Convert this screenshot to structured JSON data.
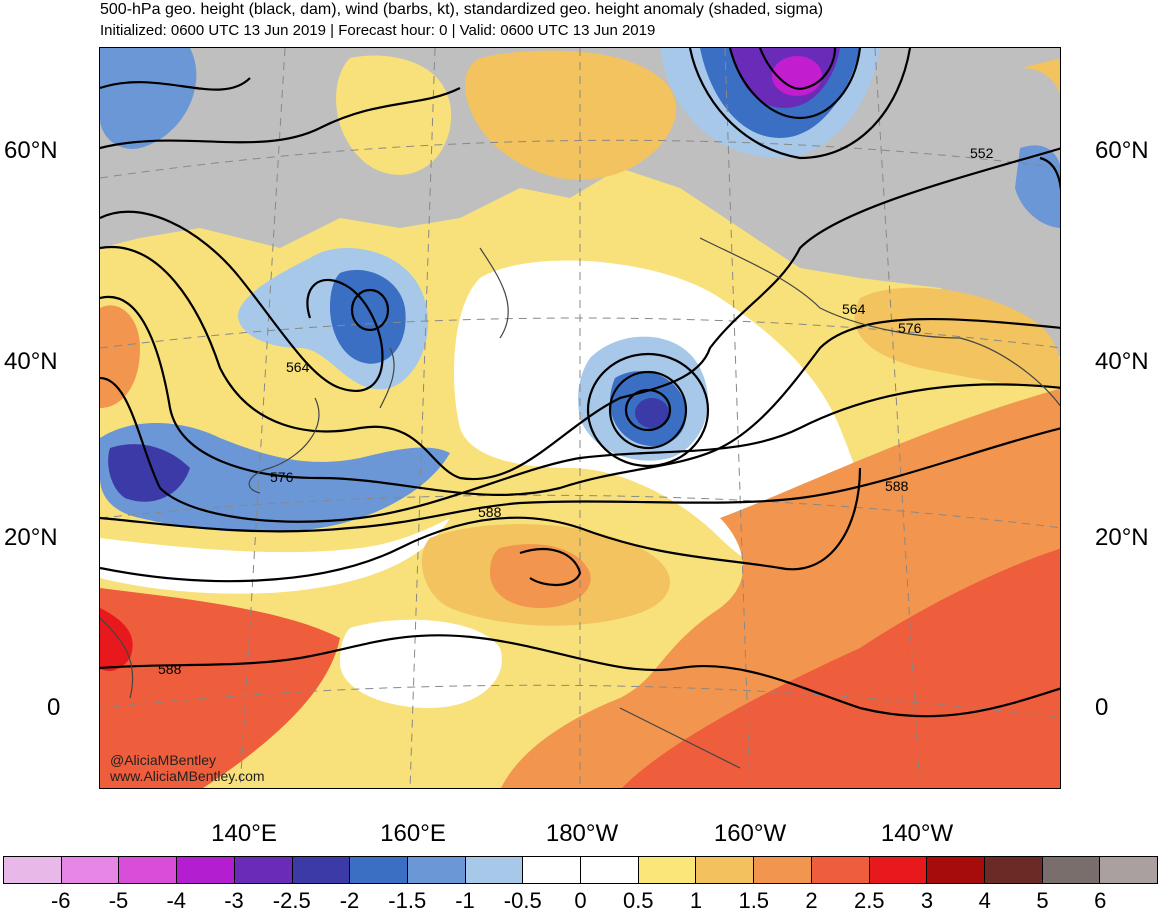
{
  "header": {
    "title": "500-hPa geo. height (black, dam), wind (barbs, kt), standardized geo. height anomaly (shaded, sigma)",
    "subtitle": "Initialized: 0600 UTC 13 Jun 2019 | Forecast hour: 0 | Valid: 0600 UTC 13 Jun 2019"
  },
  "map": {
    "lat_labels": [
      "60°N",
      "40°N",
      "20°N",
      "0"
    ],
    "lon_labels": [
      "140°E",
      "160°E",
      "180°W",
      "160°W",
      "140°W"
    ],
    "contour_labels": [
      "552",
      "564",
      "564",
      "576",
      "576",
      "588",
      "588",
      "588"
    ],
    "credit": [
      "@AliciaMBentley",
      "www.AliciaMBentley.com"
    ]
  },
  "colorbar": {
    "labels": [
      "-6",
      "-5",
      "-4",
      "-3",
      "-2.5",
      "-2",
      "-1.5",
      "-1",
      "-0.5",
      "0",
      "0.5",
      "1",
      "1.5",
      "2",
      "2.5",
      "3",
      "4",
      "5",
      "6"
    ],
    "colors": [
      "#e8b8e8",
      "#e687e6",
      "#d84ed8",
      "#b21ed0",
      "#6a2cb8",
      "#3b3aa6",
      "#3a6fc4",
      "#6b97d6",
      "#a7c8e8",
      "#ffffff",
      "#ffffff",
      "#fbe67a",
      "#f3c25e",
      "#f2954e",
      "#ee5d3c",
      "#e8191c",
      "#a60c0c",
      "#6b2a26",
      "#7a6e6c",
      "#aaa0a0"
    ]
  }
}
